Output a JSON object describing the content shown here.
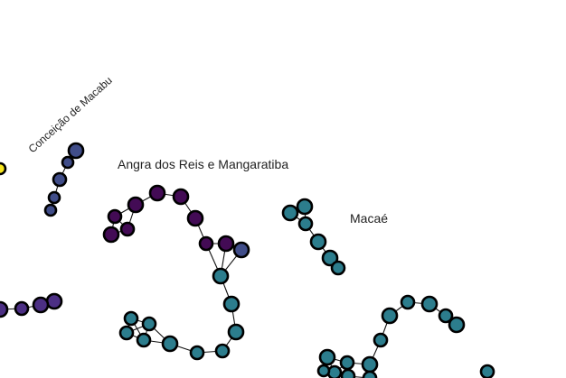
{
  "colors": {
    "yellow": "#f7e61f",
    "navy": "#404d89",
    "teal": "#2c7d8d",
    "dark_purple": "#430b55",
    "purple": "#4c2f84",
    "edge": "#111111"
  },
  "labels": {
    "conceicao": "Conceição de Macabu",
    "angra": "Angra dos Reis e Mangaratiba",
    "macae": "Macaé"
  }
}
